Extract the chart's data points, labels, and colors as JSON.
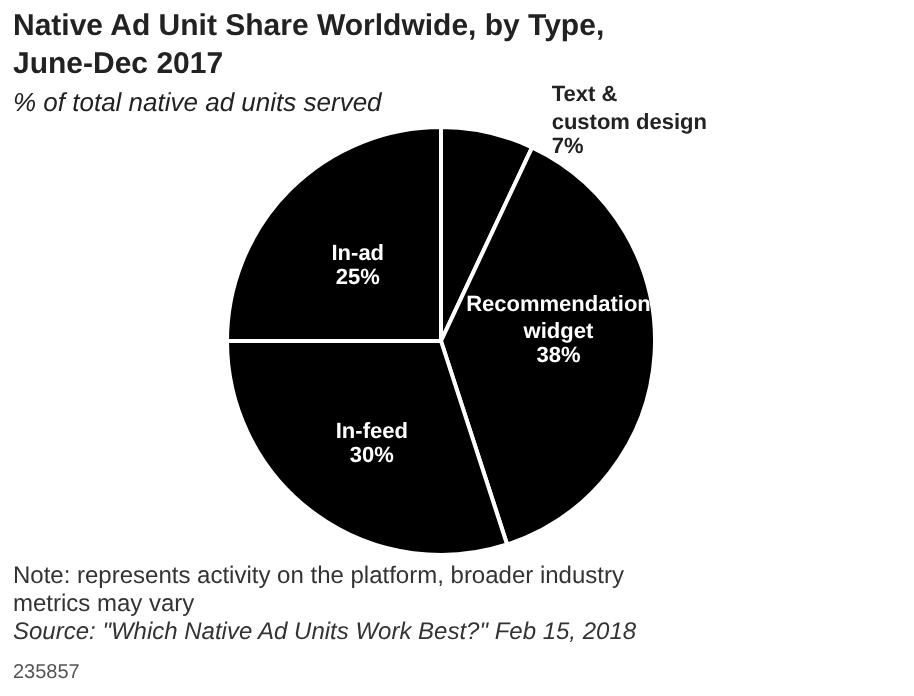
{
  "chart_data": {
    "type": "pie",
    "title": "Native Ad Unit Share Worldwide, by Type, June-Dec 2017",
    "subtitle": "% of total native ad units served",
    "categories": [
      "Text &\ncustom design",
      "Recommendation\nwidget",
      "In-feed",
      "In-ad"
    ],
    "values": [
      7,
      38,
      30,
      25
    ],
    "colors": [
      "#000000",
      "#000000",
      "#000000",
      "#000000"
    ],
    "value_labels": [
      "7%",
      "38%",
      "30%",
      "25%"
    ],
    "annotations": [
      "Note: represents activity on the platform, broader industry metrics may vary",
      "Source: \"Which Native Ad Units Work Best?\" Feb 15, 2018",
      "235857"
    ]
  }
}
